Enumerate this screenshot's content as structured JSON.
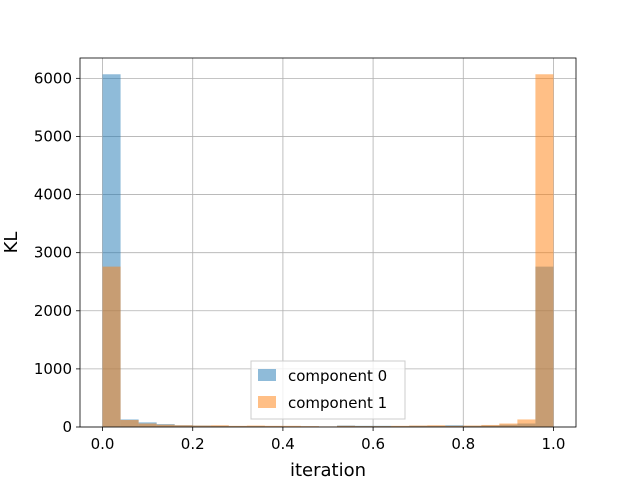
{
  "chart_data": {
    "type": "bar",
    "subtype": "overlapping-histogram",
    "title": "",
    "xlabel": "iteration",
    "ylabel": "KL",
    "xlim": [
      -0.05,
      1.05
    ],
    "ylim": [
      0,
      6350
    ],
    "xticks": [
      0.0,
      0.2,
      0.4,
      0.6,
      0.8,
      1.0
    ],
    "xtick_labels": [
      "0.0",
      "0.2",
      "0.4",
      "0.6",
      "0.8",
      "1.0"
    ],
    "yticks": [
      0,
      1000,
      2000,
      3000,
      4000,
      5000,
      6000
    ],
    "ytick_labels": [
      "0",
      "1000",
      "2000",
      "3000",
      "4000",
      "5000",
      "6000"
    ],
    "grid": true,
    "legend_position": "bottom-center",
    "bin_edges": [
      0.0,
      0.04,
      0.08,
      0.12,
      0.16,
      0.2,
      0.24,
      0.28,
      0.32,
      0.36,
      0.4,
      0.44,
      0.48,
      0.52,
      0.56,
      0.6,
      0.64,
      0.68,
      0.72,
      0.76,
      0.8,
      0.84,
      0.88,
      0.92,
      0.96,
      1.0
    ],
    "series": [
      {
        "name": "component 0",
        "color": "#1f77b4",
        "alpha": 0.5,
        "values": [
          6070,
          130,
          80,
          50,
          30,
          25,
          20,
          15,
          15,
          12,
          10,
          10,
          8,
          25,
          20,
          20,
          15,
          20,
          20,
          30,
          20,
          25,
          40,
          60,
          2760
        ]
      },
      {
        "name": "component 1",
        "color": "#ff7f0e",
        "alpha": 0.5,
        "values": [
          2760,
          120,
          60,
          40,
          30,
          25,
          30,
          20,
          25,
          20,
          20,
          15,
          10,
          20,
          15,
          15,
          20,
          25,
          30,
          20,
          25,
          35,
          60,
          130,
          6070
        ]
      }
    ]
  }
}
